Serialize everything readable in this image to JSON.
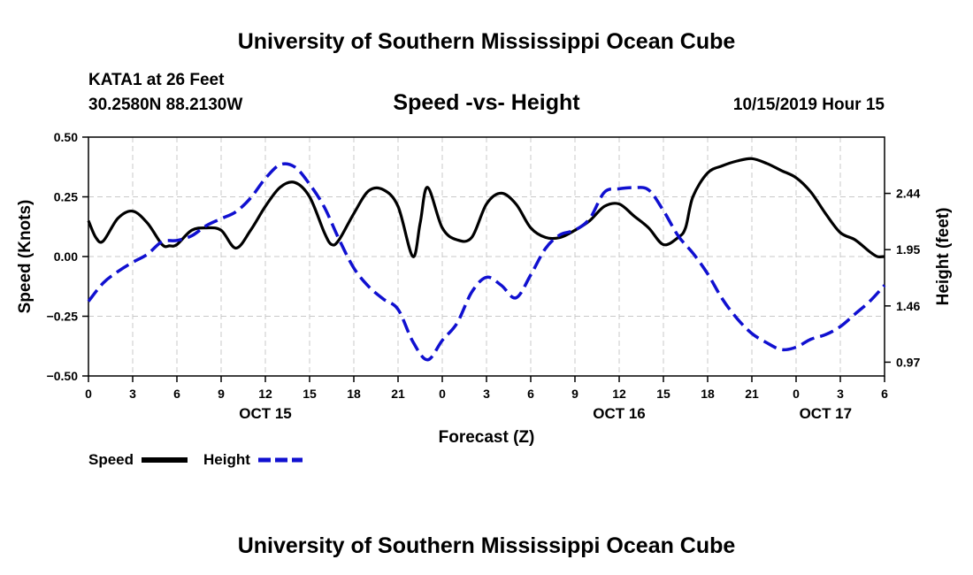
{
  "chart_data": {
    "type": "line",
    "title": "University of Southern Mississippi Ocean Cube",
    "footer_title": "University of Southern Mississippi Ocean Cube",
    "station": "KATA1 at 26 Feet",
    "location": "30.2580N 88.2130W",
    "subtitle": "Speed -vs- Height",
    "timestamp": "10/15/2019 Hour 15",
    "xlabel": "Forecast (Z)",
    "ylabel_left": "Speed (Knots)",
    "ylabel_right": "Height (feet)",
    "x_range": [
      0,
      54
    ],
    "x_tick_labels": [
      "0",
      "3",
      "6",
      "9",
      "12",
      "15",
      "18",
      "21",
      "0",
      "3",
      "6",
      "9",
      "12",
      "15",
      "18",
      "21",
      "0",
      "3",
      "6"
    ],
    "date_labels": [
      {
        "label": "OCT 15",
        "x": 12
      },
      {
        "label": "OCT 16",
        "x": 36
      },
      {
        "label": "OCT 17",
        "x": 50
      }
    ],
    "ylim_left": [
      -0.5,
      0.5
    ],
    "y_ticks_left": [
      0.5,
      0.25,
      0.0,
      -0.25,
      -0.5
    ],
    "y_tick_labels_left": [
      "0.50",
      "0.25",
      "0.00",
      "−0.25",
      "−0.50"
    ],
    "ylim_right": [
      0.85,
      2.93
    ],
    "y_ticks_right": [
      2.44,
      1.95,
      1.46,
      0.97
    ],
    "y_tick_labels_right": [
      "2.44",
      "1.95",
      "1.46",
      "0.97"
    ],
    "grid": true,
    "legend": [
      {
        "name": "Speed",
        "color": "#000000",
        "style": "solid"
      },
      {
        "name": "Height",
        "color": "#1010d0",
        "style": "dashed"
      }
    ],
    "series": [
      {
        "name": "Speed",
        "axis": "left",
        "color": "#000000",
        "x": [
          0,
          0.5,
          1,
          2,
          3,
          4,
          5,
          5.5,
          6,
          7,
          8,
          9,
          10,
          11,
          12,
          13,
          14,
          15,
          16,
          16.5,
          17,
          18,
          19,
          20,
          21,
          22,
          22.5,
          23,
          24,
          25,
          26,
          27,
          28,
          29,
          30,
          31,
          32,
          33,
          34,
          35,
          36,
          37,
          38,
          39,
          40,
          40.5,
          41,
          42,
          43,
          44,
          45,
          46,
          47,
          48,
          49,
          50,
          51,
          52,
          53,
          53.5,
          54
        ],
        "values": [
          0.15,
          0.08,
          0.065,
          0.16,
          0.19,
          0.14,
          0.05,
          0.045,
          0.05,
          0.11,
          0.12,
          0.11,
          0.035,
          0.11,
          0.21,
          0.29,
          0.31,
          0.25,
          0.1,
          0.05,
          0.07,
          0.18,
          0.275,
          0.28,
          0.21,
          0.0,
          0.14,
          0.29,
          0.12,
          0.07,
          0.08,
          0.22,
          0.265,
          0.22,
          0.12,
          0.08,
          0.08,
          0.11,
          0.15,
          0.21,
          0.22,
          0.17,
          0.12,
          0.05,
          0.08,
          0.12,
          0.25,
          0.35,
          0.38,
          0.4,
          0.41,
          0.39,
          0.36,
          0.33,
          0.27,
          0.18,
          0.1,
          0.07,
          0.02,
          0.0,
          0.0
        ]
      },
      {
        "name": "Height",
        "axis": "right",
        "color": "#1010d0",
        "x": [
          0,
          1,
          2,
          3,
          4,
          5,
          6,
          7,
          8,
          9,
          10,
          11,
          12,
          13,
          14,
          15,
          16,
          17,
          18,
          19,
          20,
          21,
          22,
          23,
          24,
          25,
          26,
          27,
          28,
          29,
          30,
          31,
          32,
          33,
          34,
          35,
          36,
          37,
          38,
          39,
          40,
          41,
          42,
          43,
          44,
          45,
          46,
          47,
          48,
          49,
          50,
          51,
          52,
          53,
          54
        ],
        "values": [
          1.5,
          1.66,
          1.76,
          1.84,
          1.91,
          2.02,
          2.03,
          2.07,
          2.16,
          2.22,
          2.28,
          2.4,
          2.57,
          2.69,
          2.67,
          2.52,
          2.32,
          2.04,
          1.79,
          1.63,
          1.52,
          1.43,
          1.15,
          0.99,
          1.16,
          1.31,
          1.58,
          1.71,
          1.64,
          1.53,
          1.73,
          1.96,
          2.08,
          2.12,
          2.22,
          2.45,
          2.48,
          2.49,
          2.47,
          2.29,
          2.07,
          1.92,
          1.74,
          1.52,
          1.35,
          1.22,
          1.14,
          1.08,
          1.1,
          1.17,
          1.21,
          1.28,
          1.39,
          1.5,
          1.64
        ]
      }
    ]
  }
}
